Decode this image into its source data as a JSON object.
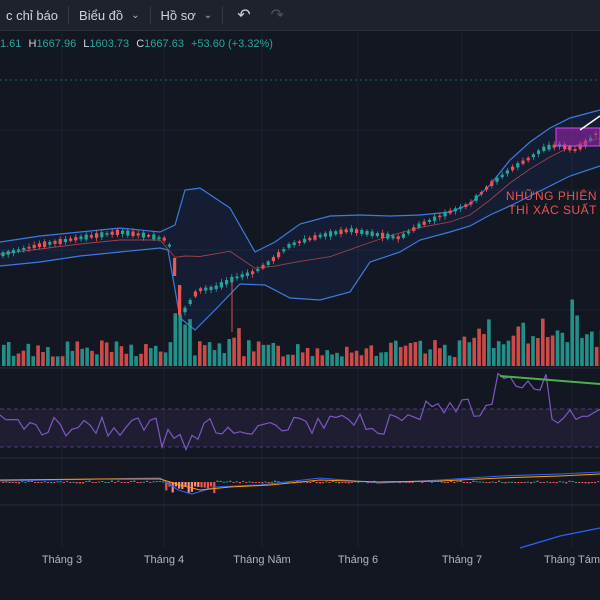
{
  "toolbar": {
    "indicators_label": "c chỉ báo",
    "chart_type_label": "Biểu đồ",
    "profile_label": "Hồ sơ",
    "undo_icon": "undo-icon",
    "redo_icon": "redo-icon"
  },
  "ohlc": {
    "open_value": "1.61",
    "high_key": "H",
    "high_value": "1667.96",
    "low_key": "L",
    "low_value": "1603.73",
    "close_key": "C",
    "close_value": "1667.63",
    "change": "+53.60 (+3.32%)"
  },
  "annotation": {
    "line1": "NHỮNG PHIÊN",
    "line2": "THÌ XÁC SUẤT"
  },
  "colors": {
    "background": "#131722",
    "up": "#26a69a",
    "down": "#ef5350",
    "bollinger": "#2962ff",
    "rsi": "#7e57c2",
    "trendline": "#4caf50",
    "annotation_box": "#9c27b0"
  },
  "chart_data": {
    "type": "candlestick",
    "x_months": [
      "Tháng 3",
      "Tháng 4",
      "Tháng Năm",
      "Tháng 6",
      "Tháng 7",
      "Tháng Tám"
    ],
    "last_bar": {
      "high": 1667.96,
      "low": 1603.73,
      "close": 1667.63,
      "change": 53.6,
      "change_percent": 3.32
    },
    "indicators": [
      "Bollinger Bands",
      "Volume",
      "RSI",
      "MACD"
    ]
  }
}
